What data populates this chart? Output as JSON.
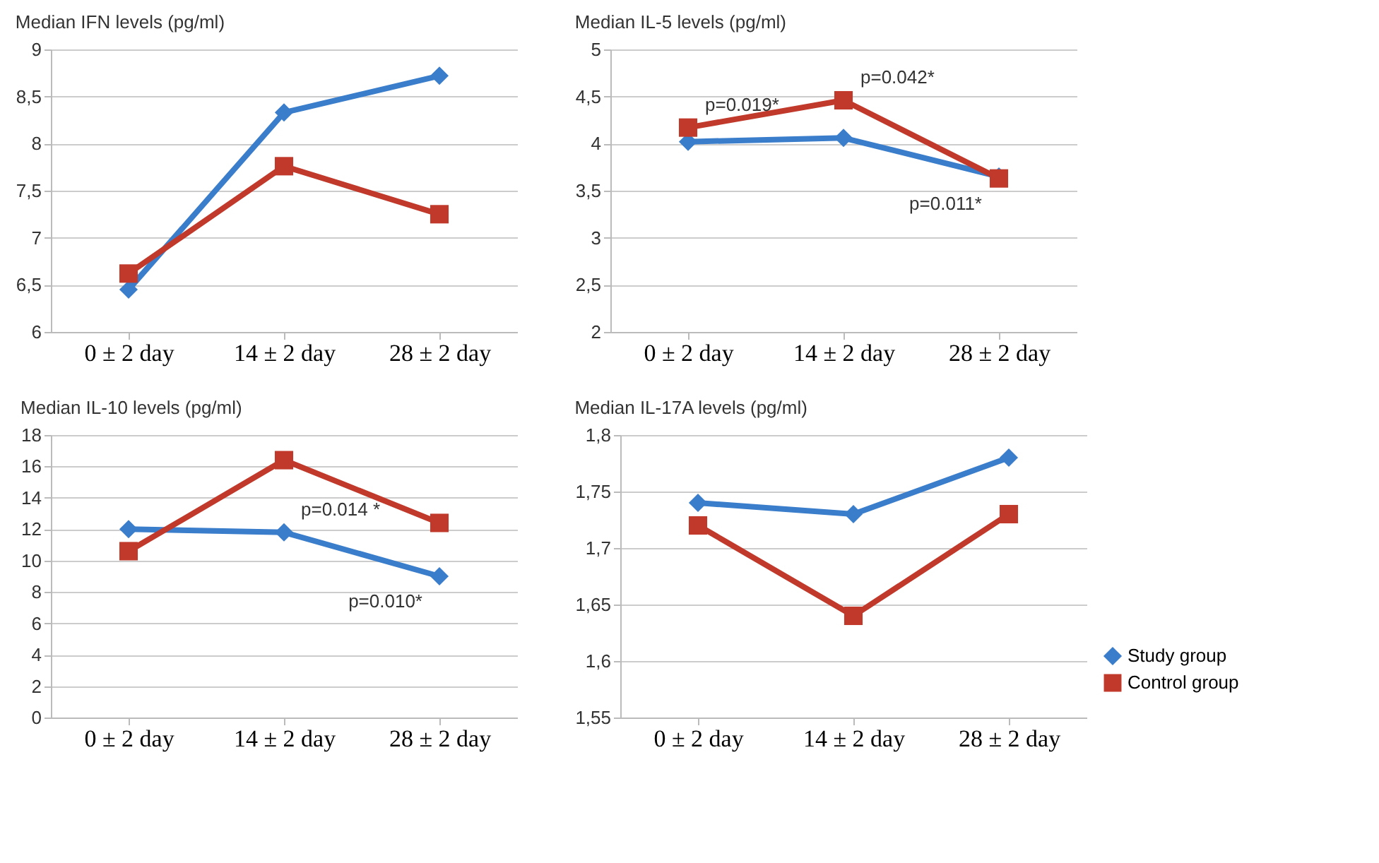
{
  "chart_data": [
    {
      "type": "line",
      "title": "Median IFN levels (pg/ml)",
      "categories": [
        "0 ± 2 day",
        "14 ± 2 day",
        "28 ± 2 day"
      ],
      "ylim": [
        6,
        9
      ],
      "yticks": [
        6,
        {
          "value": 6.5,
          "label": "6,5"
        },
        7,
        {
          "value": 7.5,
          "label": "7,5"
        },
        8,
        {
          "value": 8.5,
          "label": "8,5"
        },
        9
      ],
      "grid": "y",
      "legend": false,
      "series": [
        {
          "color": "#3a7dcb",
          "marker": "diamond",
          "values": [
            6.45,
            8.33,
            8.72
          ]
        },
        {
          "color": "#c0392b",
          "marker": "square",
          "values": [
            6.62,
            7.76,
            7.25
          ]
        }
      ]
    },
    {
      "type": "line",
      "title": "Median IL-5 levels (pg/ml)",
      "categories": [
        "0 ± 2 day",
        "14 ± 2 day",
        "28 ± 2 day"
      ],
      "ylim": [
        2,
        5
      ],
      "yticks": [
        2,
        {
          "value": 2.5,
          "label": "2,5"
        },
        3,
        {
          "value": 3.5,
          "label": "3,5"
        },
        4,
        {
          "value": 4.5,
          "label": "4,5"
        },
        5
      ],
      "grid": "y",
      "legend": false,
      "annotations": [
        {
          "text": "p=0.019*",
          "x": "0 ± 2 day",
          "y": 4.17
        },
        {
          "text": "p=0.042*",
          "x": "14 ± 2 day",
          "y": 4.46
        },
        {
          "text": "p=0.011*",
          "x": "28 ± 2 day",
          "y": 3.63
        }
      ],
      "series": [
        {
          "color": "#3a7dcb",
          "marker": "diamond",
          "values": [
            4.02,
            4.06,
            3.65
          ]
        },
        {
          "color": "#c0392b",
          "marker": "square",
          "values": [
            4.17,
            4.46,
            3.63
          ]
        }
      ]
    },
    {
      "type": "line",
      "title": "Median IL-10 levels (pg/ml)",
      "categories": [
        "0 ± 2 day",
        "14 ± 2 day",
        "28 ± 2 day"
      ],
      "ylim": [
        0,
        18
      ],
      "yticks": [
        0,
        2,
        4,
        6,
        8,
        10,
        12,
        14,
        16,
        18
      ],
      "grid": "y",
      "legend": false,
      "annotations": [
        {
          "text": "p=0.014 *",
          "x": "14 ± 2 day",
          "y": 11.8
        },
        {
          "text": "p=0.010*",
          "x": "28 ± 2 day",
          "y": 9.0
        }
      ],
      "series": [
        {
          "color": "#3a7dcb",
          "marker": "diamond",
          "values": [
            12.0,
            11.8,
            9.0
          ]
        },
        {
          "color": "#c0392b",
          "marker": "square",
          "values": [
            10.6,
            16.4,
            12.4
          ]
        }
      ]
    },
    {
      "type": "line",
      "title": "Median IL-17A levels (pg/ml)",
      "categories": [
        "0 ± 2 day",
        "14 ± 2 day",
        "28 ± 2 day"
      ],
      "ylim": [
        1.55,
        1.8
      ],
      "yticks": [
        {
          "value": 1.55,
          "label": "1,55"
        },
        {
          "value": 1.6,
          "label": "1,6"
        },
        {
          "value": 1.65,
          "label": "1,65"
        },
        {
          "value": 1.7,
          "label": "1,7"
        },
        {
          "value": 1.75,
          "label": "1,75"
        },
        {
          "value": 1.8,
          "label": "1,8"
        }
      ],
      "grid": "y",
      "legend": "bottom right",
      "series": [
        {
          "name": "Study group",
          "color": "#3a7dcb",
          "marker": "diamond",
          "values": [
            1.74,
            1.73,
            1.78
          ]
        },
        {
          "name": "Control group",
          "color": "#c0392b",
          "marker": "square",
          "values": [
            1.72,
            1.64,
            1.73
          ]
        }
      ]
    }
  ]
}
